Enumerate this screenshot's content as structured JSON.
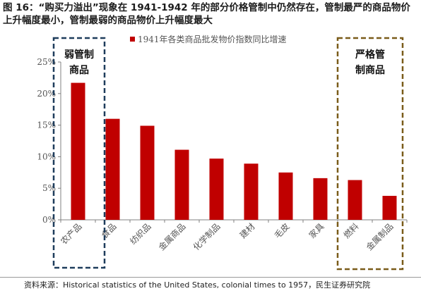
{
  "figure": {
    "title": "图 16：“购买力溢出”现象在 1941-1942 年的部分价格管制中仍然存在，管制最严的商品物价上升幅度最小，管制最弱的商品物价上升幅度最大",
    "source": "资料来源：Historical statistics of the United States, colonial times to 1957，民生证券研究院"
  },
  "annotations": {
    "left_box_label": [
      "弱管制",
      "商品"
    ],
    "right_box_label": [
      "严格管",
      "制商品"
    ],
    "left_box_color": "#1f3d5c",
    "right_box_color": "#7a5c1a"
  },
  "chart_data": {
    "type": "bar",
    "title": "",
    "xlabel": "",
    "ylabel": "",
    "categories": [
      "农产品",
      "食品",
      "纺织品",
      "金属商品",
      "化学制品",
      "建材",
      "毛皮",
      "家具",
      "燃料",
      "金属制品"
    ],
    "series": [
      {
        "name": "1941年各类商品批发物价指数同比增速",
        "color": "#c00000",
        "values": [
          21.7,
          16.0,
          14.9,
          11.1,
          9.7,
          8.9,
          7.5,
          6.6,
          6.3,
          3.8
        ]
      }
    ],
    "ylim": [
      0,
      25
    ],
    "yticks": [
      0,
      5,
      10,
      15,
      20,
      25
    ],
    "ytick_labels": [
      "0%",
      "5%",
      "10%",
      "15%",
      "20%",
      "25%"
    ],
    "grid": false,
    "legend": "top-center"
  }
}
